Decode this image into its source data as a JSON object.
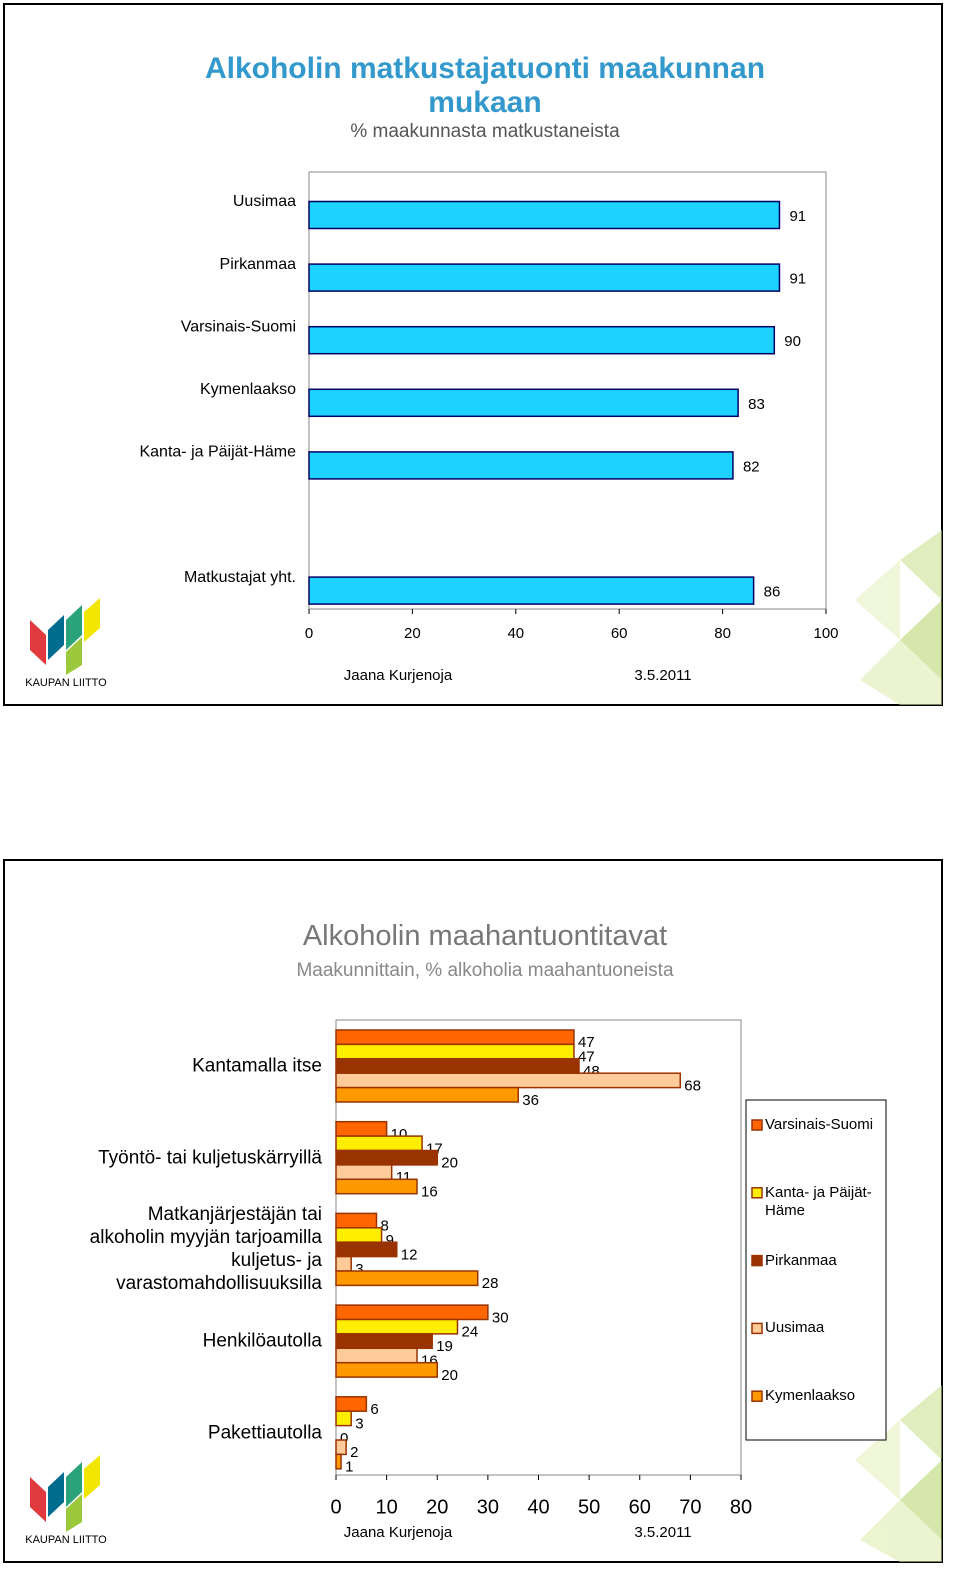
{
  "chart_data": [
    {
      "type": "bar",
      "orientation": "horizontal",
      "title": "Alkoholin matkustajatuonti maakunnan mukaan",
      "subtitle": "% maakunnasta matkustaneista",
      "categories": [
        "Uusimaa",
        "Pirkanmaa",
        "Varsinais-Suomi",
        "Kymenlaakso",
        "Kanta- ja Päijät-Häme",
        null,
        "Matkustajat yht."
      ],
      "values": [
        91,
        91,
        90,
        83,
        82,
        null,
        86
      ],
      "color": "#1ed2ff",
      "xlim": [
        0,
        100
      ],
      "xticks": [
        0,
        20,
        40,
        60,
        80,
        100
      ],
      "grid": false
    },
    {
      "type": "bar",
      "orientation": "horizontal",
      "title": "Alkoholin maahantuontitavat",
      "subtitle": "Maakunnittain, % alkoholia maahantuoneista",
      "categories": [
        "Kantamalla itse",
        "Työntö- tai kuljetuskärryillä",
        "Matkanjärjestäjän tai alkoholin myyjän tarjoamilla kuljetus- ja varastomahdollisuuksilla",
        "Henkilöautolla",
        "Pakettiautolla"
      ],
      "series": [
        {
          "name": "Varsinais-Suomi",
          "color": "#ff6600",
          "values": [
            47,
            10,
            8,
            30,
            6
          ]
        },
        {
          "name": "Kanta- ja Päijät-Häme",
          "color": "#ffee00",
          "values": [
            47,
            17,
            9,
            24,
            3
          ]
        },
        {
          "name": "Pirkanmaa",
          "color": "#993300",
          "values": [
            48,
            20,
            12,
            19,
            0
          ]
        },
        {
          "name": "Uusimaa",
          "color": "#ffcc99",
          "values": [
            68,
            11,
            3,
            16,
            2
          ]
        },
        {
          "name": "Kymenlaakso",
          "color": "#ff9900",
          "values": [
            36,
            16,
            28,
            20,
            1
          ]
        }
      ],
      "xlim": [
        0,
        80
      ],
      "xticks": [
        0,
        10,
        20,
        30,
        40,
        50,
        60,
        70,
        80
      ],
      "grid": false,
      "legend": "right"
    }
  ],
  "slides": [
    {
      "author": "Jaana Kurjenoja",
      "date": "3.5.2011",
      "logo": "KAUPAN LIITTO"
    },
    {
      "author": "Jaana Kurjenoja",
      "date": "3.5.2011",
      "logo": "KAUPAN LIITTO"
    }
  ]
}
